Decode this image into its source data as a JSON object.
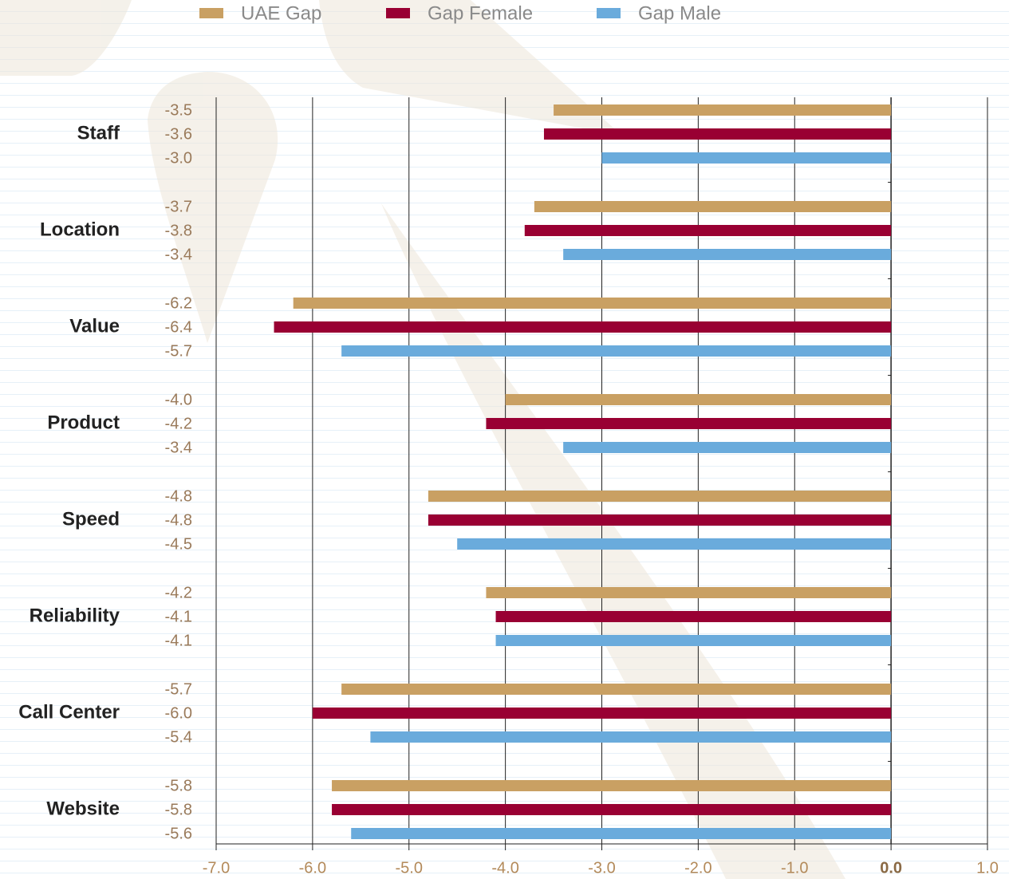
{
  "chart_data": {
    "type": "hbar",
    "categories": [
      "Staff",
      "Location",
      "Value",
      "Product",
      "Speed",
      "Reliability",
      "Call Center",
      "Website"
    ],
    "series": [
      {
        "name": "UAE Gap",
        "color": "#c9a063",
        "values": [
          -3.5,
          -3.7,
          -6.2,
          -4.0,
          -4.8,
          -4.2,
          -5.7,
          -5.8
        ],
        "value_labels": [
          "-3.5",
          "-3.7",
          "-6.2",
          "-4.0",
          "-4.8",
          "-4.2",
          "-5.7",
          "-5.8"
        ]
      },
      {
        "name": "Gap Female",
        "color": "#990033",
        "values": [
          -3.6,
          -3.8,
          -6.4,
          -4.2,
          -4.8,
          -4.1,
          -6.0,
          -5.8
        ],
        "value_labels": [
          "-3.6",
          "-3.8",
          "-6.4",
          "-4.2",
          "-4.8",
          "-4.1",
          "-6.0",
          "-5.8"
        ]
      },
      {
        "name": "Gap Male",
        "color": "#6aabdc",
        "values": [
          -3.0,
          -3.4,
          -5.7,
          -3.4,
          -4.5,
          -4.1,
          -5.4,
          -5.6
        ],
        "value_labels": [
          "-3.0",
          "-3.4",
          "-5.7",
          "-3.4",
          "-4.5",
          "-4.1",
          "-5.4",
          "-5.6"
        ]
      }
    ],
    "xlim": [
      -7,
      1
    ],
    "xticks": [
      {
        "value": -7,
        "label": "-7.0"
      },
      {
        "value": -6,
        "label": "-6.0"
      },
      {
        "value": -5,
        "label": "-5.0"
      },
      {
        "value": -4,
        "label": "-4.0"
      },
      {
        "value": -3,
        "label": "-3.0"
      },
      {
        "value": -2,
        "label": "-2.0"
      },
      {
        "value": -1,
        "label": "-1.0"
      },
      {
        "value": 0,
        "label": "0.0"
      },
      {
        "value": 1,
        "label": "1.0"
      }
    ],
    "grid": true
  }
}
